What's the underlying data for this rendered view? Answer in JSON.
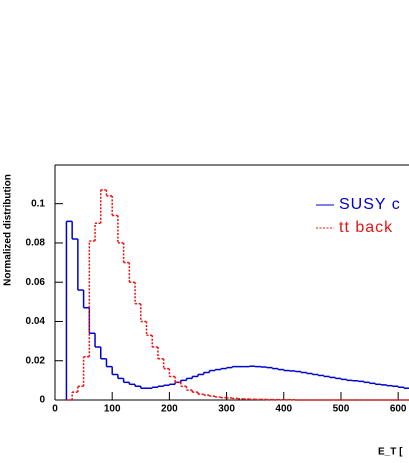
{
  "chart_data": {
    "type": "histogram",
    "x_label": "E_T [",
    "y_label": "Normalized distribution",
    "bins": [
      20,
      30,
      40,
      50,
      60,
      70,
      80,
      90,
      100,
      110,
      120,
      130,
      140,
      150,
      160,
      170,
      180,
      190,
      200,
      210,
      220,
      230,
      240,
      250,
      260,
      270,
      280,
      290,
      300,
      310,
      320,
      330,
      340,
      350,
      360,
      370,
      380,
      390,
      400,
      410,
      420,
      430,
      440,
      450,
      460,
      470,
      480,
      490,
      500,
      510,
      520,
      530,
      540,
      550,
      560,
      570,
      580,
      590,
      600,
      610,
      620
    ],
    "series": [
      {
        "name": "SUSY c",
        "color": "#0000cc",
        "dash": "solid",
        "values": [
          0.091,
          0.082,
          0.056,
          0.047,
          0.034,
          0.027,
          0.021,
          0.017,
          0.013,
          0.011,
          0.009,
          0.008,
          0.007,
          0.006,
          0.006,
          0.0065,
          0.007,
          0.0075,
          0.008,
          0.009,
          0.01,
          0.011,
          0.012,
          0.013,
          0.014,
          0.015,
          0.0155,
          0.016,
          0.0165,
          0.017,
          0.017,
          0.017,
          0.0172,
          0.017,
          0.0168,
          0.0165,
          0.016,
          0.0155,
          0.015,
          0.0148,
          0.0145,
          0.014,
          0.0135,
          0.013,
          0.0125,
          0.012,
          0.0115,
          0.011,
          0.0105,
          0.01,
          0.0098,
          0.0095,
          0.009,
          0.0085,
          0.008,
          0.0077,
          0.0073,
          0.007,
          0.0065,
          0.006
        ]
      },
      {
        "name": "tt back",
        "color": "#ee1111",
        "dash": "dotted",
        "values": [
          0,
          0.004,
          0.007,
          0.022,
          0.081,
          0.09,
          0.107,
          0.104,
          0.094,
          0.08,
          0.07,
          0.06,
          0.049,
          0.04,
          0.033,
          0.027,
          0.021,
          0.016,
          0.012,
          0.009,
          0.007,
          0.005,
          0.004,
          0.003,
          0.0025,
          0.002,
          0.0015,
          0.0012,
          0.001,
          0.0008,
          0.0006,
          0.0005,
          0.0004,
          0.0003,
          0.0003,
          0.0002,
          0.0002,
          0.0001,
          0.0001,
          0.0001,
          0,
          0,
          0,
          0,
          0,
          0,
          0,
          0,
          0,
          0,
          0,
          0,
          0,
          0,
          0,
          0,
          0,
          0,
          0,
          0
        ]
      }
    ],
    "xlim": [
      0,
      620
    ],
    "xticks": [
      0,
      100,
      200,
      300,
      400,
      500,
      600
    ],
    "ylim": [
      0,
      0.12
    ],
    "yticks": [
      0,
      0.02,
      0.04,
      0.06,
      0.08,
      0.1
    ],
    "legend": "upper right"
  }
}
